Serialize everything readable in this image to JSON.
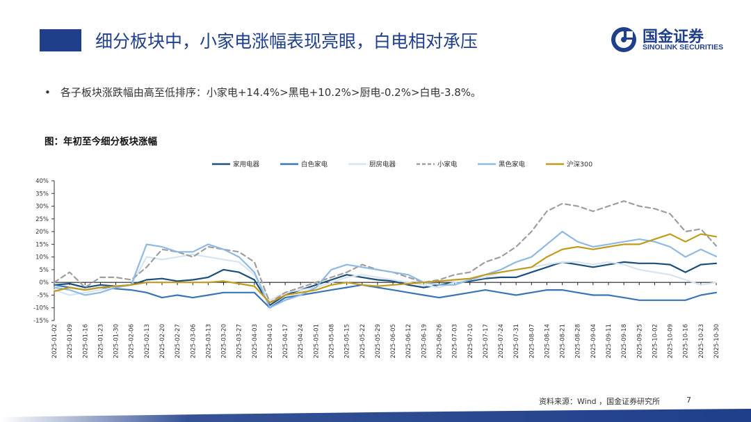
{
  "header": {
    "title": "细分板块中，小家电涨幅表现亮眼，白电相对承压"
  },
  "logo": {
    "cn": "国金证券",
    "en": "SINOLINK SECURITIES"
  },
  "bullet": {
    "text": "各子板块涨跌幅由高至低排序：小家电+14.4%>黑电+10.2%>厨电-0.2%>白电-3.8%。"
  },
  "figure": {
    "title": "图：年初至今细分板块涨幅"
  },
  "footer": {
    "source": "资料来源：Wind ，国金证券研究所",
    "page": "7"
  },
  "chart_data": {
    "type": "line",
    "x": [
      "2025-01-02",
      "2025-01-09",
      "2025-01-16",
      "2025-01-23",
      "2025-01-30",
      "2025-02-06",
      "2025-02-13",
      "2025-02-20",
      "2025-02-27",
      "2025-03-06",
      "2025-03-13",
      "2025-03-20",
      "2025-03-27",
      "2025-04-03",
      "2025-04-10",
      "2025-04-17",
      "2025-04-24",
      "2025-05-01",
      "2025-05-08",
      "2025-05-15",
      "2025-05-22",
      "2025-05-29",
      "2025-06-05",
      "2025-06-12",
      "2025-06-19",
      "2025-06-26",
      "2025-07-03",
      "2025-07-10",
      "2025-07-17",
      "2025-07-24",
      "2025-07-31",
      "2025-08-07",
      "2025-08-14",
      "2025-08-21",
      "2025-08-28",
      "2025-09-04",
      "2025-09-11",
      "2025-09-18",
      "2025-09-25",
      "2025-10-02",
      "2025-10-09",
      "2025-10-16",
      "2025-10-23",
      "2025-10-30"
    ],
    "ylim": [
      -15,
      40
    ],
    "yticks": [
      -15,
      -10,
      -5,
      0,
      5,
      10,
      15,
      20,
      25,
      30,
      35,
      40
    ],
    "ytick_labels": [
      "-15%",
      "-10%",
      "-5%",
      "0%",
      "5%",
      "10%",
      "15%",
      "20%",
      "25%",
      "30%",
      "35%",
      "40%"
    ],
    "legend_position": "top",
    "series": [
      {
        "name": "家用电器",
        "color": "#1b4e7a",
        "dash": "",
        "values": [
          -1,
          -0.5,
          -2,
          -1,
          -1.5,
          -1,
          1,
          1.5,
          0.5,
          1,
          2,
          5,
          4,
          1,
          -9,
          -5,
          -3,
          -1,
          1,
          3,
          2,
          1,
          0.5,
          -1,
          -2,
          -1,
          0,
          0.5,
          1.5,
          2,
          2,
          4,
          6,
          8,
          7,
          6,
          7,
          8,
          7.5,
          7.5,
          7,
          4,
          7,
          7.5
        ]
      },
      {
        "name": "白色家电",
        "color": "#3a74b5",
        "dash": "",
        "values": [
          -1,
          -2,
          -3,
          -2,
          -2.5,
          -3,
          -4,
          -6,
          -5,
          -6,
          -5,
          -4,
          -4,
          -4,
          -10,
          -6,
          -5,
          -4,
          -3,
          -2,
          -1,
          -2,
          -3,
          -4,
          -5,
          -6,
          -5,
          -4,
          -3,
          -4,
          -5,
          -4,
          -3,
          -3,
          -4,
          -5,
          -5,
          -6,
          -7,
          -7,
          -7,
          -7,
          -5,
          -4
        ]
      },
      {
        "name": "厨房电器",
        "color": "#d6e4f2",
        "dash": "",
        "values": [
          -3,
          -5,
          -4,
          -3,
          -2,
          -1,
          10,
          9,
          10,
          11,
          10,
          9,
          8,
          3,
          -7,
          -4,
          -3,
          -2,
          0,
          2,
          3,
          2,
          1,
          0,
          -1,
          -2,
          0,
          1,
          2,
          4,
          5,
          6,
          7,
          8,
          8,
          7,
          8,
          7,
          5,
          4,
          3,
          1,
          -1,
          0
        ]
      },
      {
        "name": "小家电",
        "color": "#9e9e9e",
        "dash": "7,5",
        "values": [
          0,
          4,
          -2,
          2,
          2,
          1,
          6,
          13,
          12,
          10,
          14,
          13,
          12,
          8,
          -8,
          -4,
          -2,
          0,
          2,
          4,
          7,
          5,
          4,
          2,
          0,
          1,
          3,
          4,
          8,
          10,
          14,
          20,
          28,
          31,
          30,
          28,
          30,
          32,
          30,
          29,
          27,
          20,
          21,
          14.4
        ]
      },
      {
        "name": "黑色家电",
        "color": "#8fb8e2",
        "dash": "",
        "values": [
          -2,
          -3,
          -5,
          -4,
          -2,
          -1,
          15,
          14,
          12,
          12,
          15,
          13,
          10,
          4,
          -10,
          -7,
          -5,
          -2,
          5,
          7,
          6,
          5,
          4,
          3,
          0,
          -1,
          -1,
          1,
          3,
          5,
          8,
          10,
          15,
          20,
          16,
          14,
          15,
          16,
          17,
          16,
          14,
          10,
          13,
          10.2
        ]
      },
      {
        "name": "沪深300",
        "color": "#c09a1a",
        "dash": "",
        "values": [
          -3.5,
          -2,
          -3,
          -2,
          -1.5,
          -1,
          0,
          0,
          0,
          0,
          0,
          0.5,
          -0.5,
          -1.5,
          -8,
          -5,
          -4,
          -3,
          -1,
          0,
          -1,
          -1.5,
          -1,
          -0.5,
          0,
          0.5,
          1,
          1.5,
          3,
          4,
          5,
          6,
          10,
          13,
          14,
          13,
          14,
          15,
          15,
          17,
          19,
          16,
          19,
          18
        ]
      }
    ]
  }
}
